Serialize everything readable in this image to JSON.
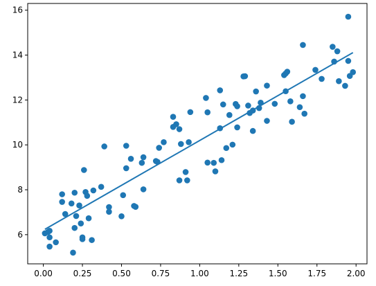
{
  "chart_data": {
    "type": "scatter",
    "title": "",
    "xlabel": "",
    "ylabel": "",
    "xlim": [
      -0.1,
      2.07
    ],
    "ylim": [
      4.7,
      16.3
    ],
    "x_ticks": [
      "0.00",
      "0.25",
      "0.50",
      "0.75",
      "1.00",
      "1.25",
      "1.50",
      "1.75",
      "2.00"
    ],
    "y_ticks": [
      "6",
      "8",
      "10",
      "12",
      "14",
      "16"
    ],
    "grid": false,
    "colors": {
      "points": "#1f77b4",
      "line": "#1f77b4",
      "axes": "#000000"
    },
    "series": [
      {
        "kind": "scatter",
        "points": [
          [
            0.01,
            6.06
          ],
          [
            0.03,
            6.12
          ],
          [
            0.04,
            6.17
          ],
          [
            0.04,
            5.88
          ],
          [
            0.04,
            5.47
          ],
          [
            0.08,
            5.66
          ],
          [
            0.12,
            7.8
          ],
          [
            0.12,
            7.46
          ],
          [
            0.14,
            6.92
          ],
          [
            0.18,
            7.39
          ],
          [
            0.19,
            5.2
          ],
          [
            0.2,
            7.87
          ],
          [
            0.2,
            6.3
          ],
          [
            0.21,
            6.83
          ],
          [
            0.23,
            7.3
          ],
          [
            0.24,
            6.5
          ],
          [
            0.25,
            5.8
          ],
          [
            0.25,
            5.88
          ],
          [
            0.26,
            8.88
          ],
          [
            0.27,
            7.9
          ],
          [
            0.28,
            7.73
          ],
          [
            0.29,
            6.73
          ],
          [
            0.31,
            5.76
          ],
          [
            0.32,
            7.97
          ],
          [
            0.37,
            8.13
          ],
          [
            0.39,
            9.93
          ],
          [
            0.42,
            7.23
          ],
          [
            0.42,
            7.02
          ],
          [
            0.5,
            6.82
          ],
          [
            0.51,
            7.76
          ],
          [
            0.53,
            9.96
          ],
          [
            0.53,
            8.96
          ],
          [
            0.56,
            9.38
          ],
          [
            0.58,
            7.28
          ],
          [
            0.59,
            7.24
          ],
          [
            0.63,
            9.2
          ],
          [
            0.64,
            9.45
          ],
          [
            0.64,
            8.02
          ],
          [
            0.72,
            9.28
          ],
          [
            0.73,
            9.24
          ],
          [
            0.74,
            9.87
          ],
          [
            0.77,
            10.12
          ],
          [
            0.83,
            11.25
          ],
          [
            0.83,
            10.8
          ],
          [
            0.85,
            10.92
          ],
          [
            0.87,
            10.7
          ],
          [
            0.87,
            8.42
          ],
          [
            0.88,
            10.04
          ],
          [
            0.91,
            8.79
          ],
          [
            0.92,
            8.42
          ],
          [
            0.93,
            10.12
          ],
          [
            0.94,
            11.46
          ],
          [
            1.04,
            12.09
          ],
          [
            1.05,
            11.45
          ],
          [
            1.05,
            9.21
          ],
          [
            1.09,
            9.2
          ],
          [
            1.1,
            8.82
          ],
          [
            1.13,
            12.43
          ],
          [
            1.13,
            10.74
          ],
          [
            1.14,
            9.32
          ],
          [
            1.15,
            11.8
          ],
          [
            1.17,
            9.86
          ],
          [
            1.19,
            11.33
          ],
          [
            1.21,
            10.01
          ],
          [
            1.23,
            11.82
          ],
          [
            1.24,
            11.72
          ],
          [
            1.24,
            10.78
          ],
          [
            1.28,
            13.05
          ],
          [
            1.29,
            13.06
          ],
          [
            1.31,
            11.75
          ],
          [
            1.32,
            11.42
          ],
          [
            1.34,
            11.53
          ],
          [
            1.34,
            10.62
          ],
          [
            1.36,
            12.38
          ],
          [
            1.38,
            11.64
          ],
          [
            1.39,
            11.88
          ],
          [
            1.43,
            12.64
          ],
          [
            1.43,
            11.07
          ],
          [
            1.48,
            11.83
          ],
          [
            1.54,
            13.11
          ],
          [
            1.55,
            13.18
          ],
          [
            1.55,
            12.39
          ],
          [
            1.56,
            13.26
          ],
          [
            1.58,
            11.94
          ],
          [
            1.59,
            11.03
          ],
          [
            1.64,
            11.68
          ],
          [
            1.66,
            14.45
          ],
          [
            1.66,
            12.17
          ],
          [
            1.67,
            11.39
          ],
          [
            1.74,
            13.34
          ],
          [
            1.78,
            12.94
          ],
          [
            1.85,
            14.37
          ],
          [
            1.86,
            13.71
          ],
          [
            1.88,
            14.17
          ],
          [
            1.89,
            12.84
          ],
          [
            1.93,
            12.63
          ],
          [
            1.95,
            15.71
          ],
          [
            1.95,
            13.74
          ],
          [
            1.96,
            13.07
          ],
          [
            1.98,
            13.24
          ]
        ]
      },
      {
        "kind": "line",
        "points": [
          [
            0.01,
            6.24
          ],
          [
            1.98,
            14.11
          ]
        ]
      }
    ]
  }
}
